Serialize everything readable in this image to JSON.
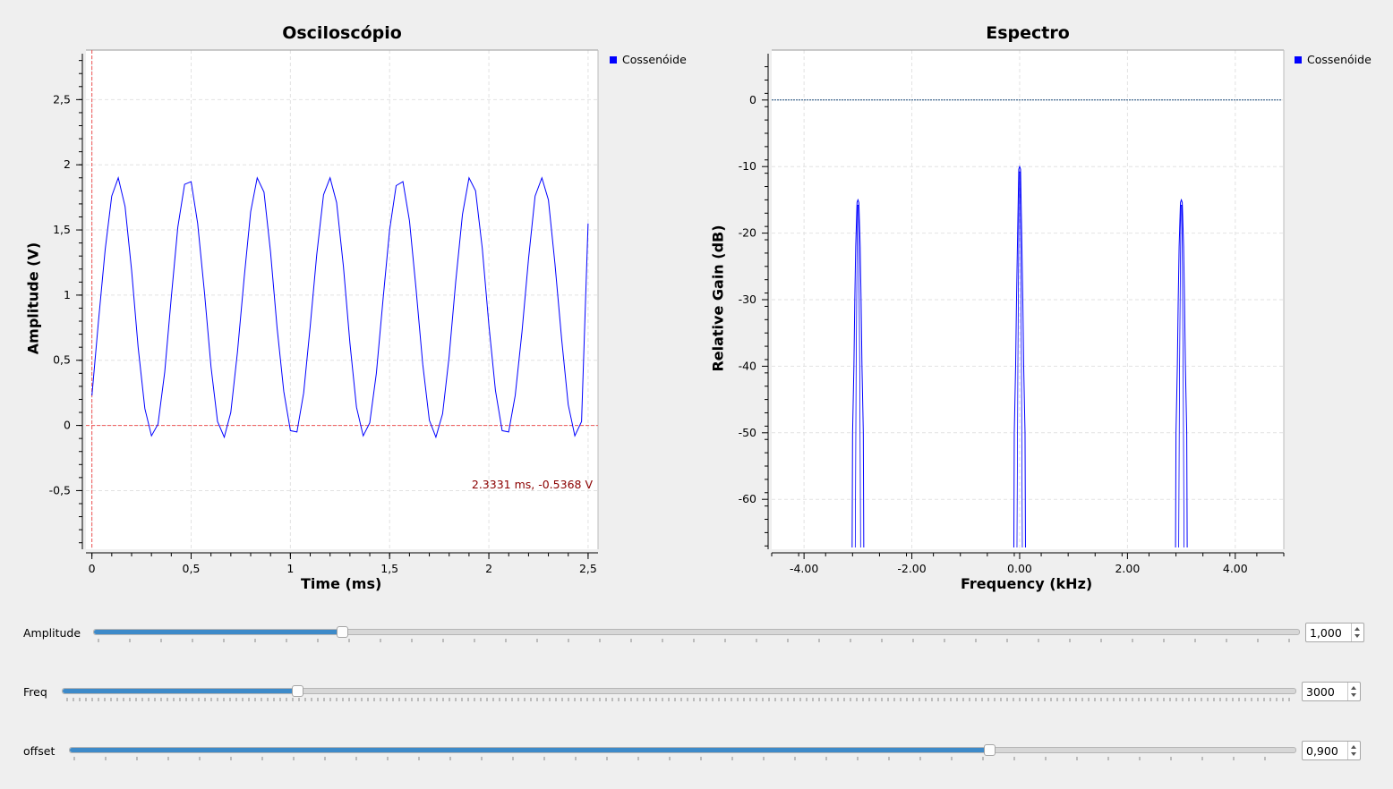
{
  "scope": {
    "title": "Osciloscópio",
    "xlabel": "Time (ms)",
    "ylabel": "Amplitude (V)",
    "legend": "Cossenóide",
    "cursor_readout": "2.3331 ms, -0.5368 V",
    "x_ticks": [
      "0",
      "0,5",
      "1",
      "1,5",
      "2",
      "2,5"
    ],
    "y_ticks": [
      "-0,5",
      "0",
      "0,5",
      "1",
      "1,5",
      "2",
      "2,5"
    ]
  },
  "spectrum": {
    "title": "Espectro",
    "xlabel": "Frequency (kHz)",
    "ylabel": "Relative Gain (dB)",
    "legend": "Cossenóide",
    "x_ticks": [
      "-4.00",
      "-2.00",
      "0.00",
      "2.00",
      "4.00"
    ],
    "y_ticks": [
      "0",
      "-10",
      "-20",
      "-30",
      "-40",
      "-50",
      "-60"
    ]
  },
  "chart_data": [
    {
      "type": "line",
      "title": "Osciloscópio",
      "xlabel": "Time (ms)",
      "ylabel": "Amplitude (V)",
      "xlim": [
        -0.03,
        2.55
      ],
      "ylim": [
        -0.95,
        2.88
      ],
      "grid": true,
      "legend": "top-right",
      "series": [
        {
          "name": "Cossenóide",
          "x": [
            0,
            0.033,
            0.067,
            0.1,
            0.133,
            0.167,
            0.2,
            0.233,
            0.267,
            0.3,
            0.333,
            0.367,
            0.4,
            0.433,
            0.467,
            0.5,
            0.533,
            0.567,
            0.6,
            0.633,
            0.667,
            0.7,
            0.733,
            0.767,
            0.8,
            0.833,
            0.867,
            0.9,
            0.933,
            0.967,
            1.0,
            1.033,
            1.067,
            1.1,
            1.133,
            1.167,
            1.2,
            1.233,
            1.267,
            1.3,
            1.333,
            1.367,
            1.4,
            1.433,
            1.467,
            1.5,
            1.533,
            1.567,
            1.6,
            1.633,
            1.667,
            1.7,
            1.733,
            1.767,
            1.8,
            1.833,
            1.867,
            1.9,
            1.933,
            1.967,
            2.0,
            2.033,
            2.067,
            2.1,
            2.133,
            2.167,
            2.2,
            2.233,
            2.267,
            2.3,
            2.333,
            2.367,
            2.4,
            2.433,
            2.467,
            2.5
          ],
          "values": [
            0.23,
            0.8,
            1.35,
            1.76,
            1.9,
            1.68,
            1.19,
            0.6,
            0.13,
            -0.08,
            0.01,
            0.41,
            0.98,
            1.52,
            1.85,
            1.87,
            1.55,
            1.02,
            0.45,
            0.03,
            -0.09,
            0.1,
            0.56,
            1.13,
            1.64,
            1.9,
            1.79,
            1.33,
            0.75,
            0.26,
            -0.04,
            -0.05,
            0.25,
            0.76,
            1.31,
            1.77,
            1.9,
            1.71,
            1.22,
            0.63,
            0.14,
            -0.08,
            0.02,
            0.4,
            0.97,
            1.5,
            1.84,
            1.87,
            1.57,
            1.05,
            0.47,
            0.04,
            -0.09,
            0.09,
            0.53,
            1.1,
            1.62,
            1.9,
            1.8,
            1.36,
            0.77,
            0.27,
            -0.04,
            -0.05,
            0.23,
            0.72,
            1.28,
            1.76,
            1.9,
            1.73,
            1.24,
            0.66,
            0.16,
            -0.08,
            0.03,
            1.55
          ],
          "color": "#0000ff"
        }
      ],
      "cursor": {
        "x": 2.3331,
        "y": -0.5368
      }
    },
    {
      "type": "line",
      "title": "Espectro",
      "xlabel": "Frequency (kHz)",
      "ylabel": "Relative Gain (dB)",
      "xlim": [
        -4.6,
        4.9
      ],
      "ylim": [
        -67.5,
        7.5
      ],
      "grid": true,
      "legend": "top-right",
      "series": [
        {
          "name": "Cossenóide",
          "color": "#0000ff",
          "peaks": [
            {
              "x": -3.0,
              "value": -15.0
            },
            {
              "x": 0.0,
              "value": -10.0
            },
            {
              "x": 3.0,
              "value": -15.0
            }
          ]
        }
      ]
    }
  ],
  "controls": [
    {
      "label": "Amplitude",
      "value": "1,000",
      "fraction": 0.206
    },
    {
      "label": "Freq",
      "value": "3000",
      "fraction": 0.19
    },
    {
      "label": "offset",
      "value": "0,900",
      "fraction": 0.75
    }
  ]
}
